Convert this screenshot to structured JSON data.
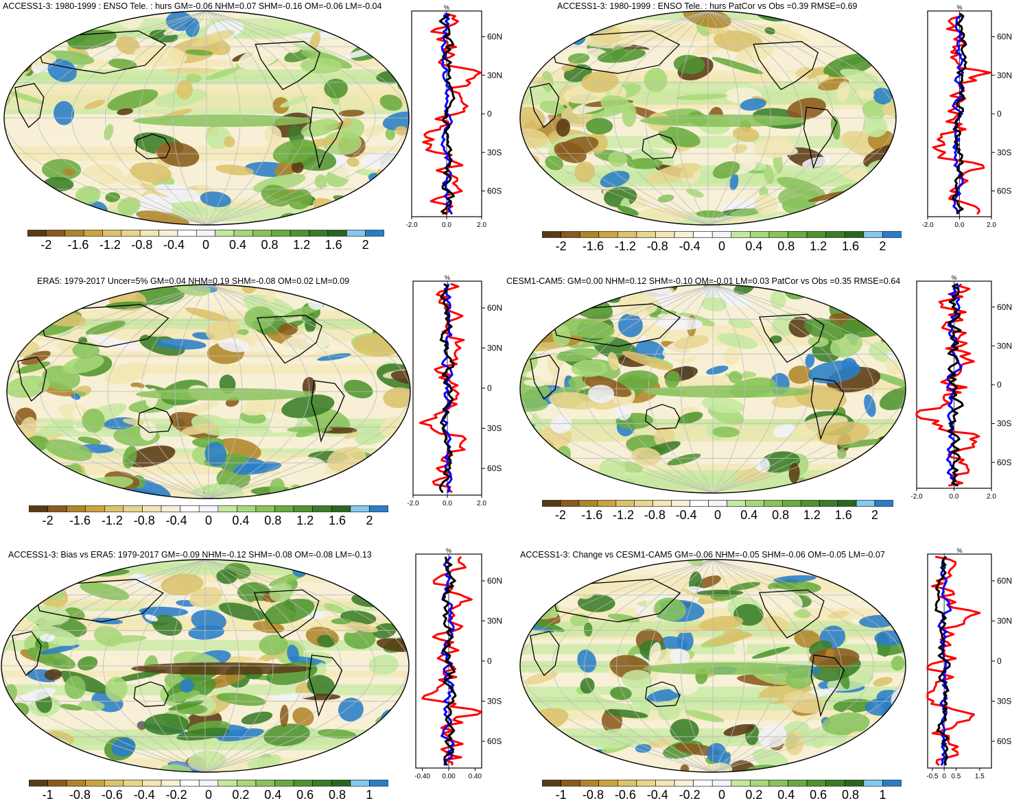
{
  "panels": [
    {
      "id": "p1",
      "title": "ACCESS1-3: 1980-1999 : ENSO Tele. : hurs GM=-0.06 NHM=0.07 SHM=-0.16 OM=-0.06 LM=-0.04",
      "colorbar_labels": [
        "-2",
        "-1.6",
        "-1.2",
        "-0.8",
        "-0.4",
        "0",
        "0.4",
        "0.8",
        "1.2",
        "1.6",
        "2"
      ],
      "profile": {
        "unit": "%",
        "x_ticks": [
          "-2.0",
          "0.0",
          "2.0"
        ],
        "y_ticks": [
          "60N",
          "30N",
          "0",
          "30S",
          "60S"
        ],
        "xlim": [
          -2,
          2
        ]
      }
    },
    {
      "id": "p2",
      "title": "ACCESS1-3: 1980-1999 : ENSO Tele. : hurs PatCor vs Obs =0.39 RMSE=0.69",
      "colorbar_labels": [
        "-2",
        "-1.6",
        "-1.2",
        "-0.8",
        "-0.4",
        "0",
        "0.4",
        "0.8",
        "1.2",
        "1.6",
        "2"
      ],
      "profile": {
        "unit": "%",
        "x_ticks": [
          "-2.0",
          "0.0",
          "2.0"
        ],
        "y_ticks": [
          "60N",
          "30N",
          "0",
          "30S",
          "60S"
        ],
        "xlim": [
          -2,
          2
        ]
      }
    },
    {
      "id": "p3",
      "title": "ERA5: 1979-2017 Uncer=5% GM=0.04 NHM=0.19 SHM=-0.08 OM=0.02 LM=0.09",
      "colorbar_labels": [
        "-2",
        "-1.6",
        "-1.2",
        "-0.8",
        "-0.4",
        "0",
        "0.4",
        "0.8",
        "1.2",
        "1.6",
        "2"
      ],
      "profile": {
        "unit": "%",
        "x_ticks": [
          "-2.0",
          "0.0",
          "2.0"
        ],
        "y_ticks": [
          "60N",
          "30N",
          "0",
          "30S",
          "60S"
        ],
        "xlim": [
          -2,
          2
        ]
      }
    },
    {
      "id": "p4",
      "title": "CESM1-CAM5: GM=0.00 NHM=0.12 SHM=-0.10 OM=-0.01 LM=0.03 PatCor vs Obs =0.35 RMSE=0.64",
      "colorbar_labels": [
        "-2",
        "-1.6",
        "-1.2",
        "-0.8",
        "-0.4",
        "0",
        "0.4",
        "0.8",
        "1.2",
        "1.6",
        "2"
      ],
      "profile": {
        "unit": "%",
        "x_ticks": [
          "-2.0",
          "0.0",
          "2.0"
        ],
        "y_ticks": [
          "60N",
          "30N",
          "0",
          "30S",
          "60S"
        ],
        "xlim": [
          -2,
          2
        ]
      }
    },
    {
      "id": "p5",
      "title": "ACCESS1-3: Bias vs ERA5: 1979-2017 GM=-0.09 NHM=-0.12 SHM=-0.08 OM=-0.08 LM=-0.13",
      "colorbar_labels": [
        "-1",
        "-0.8",
        "-0.6",
        "-0.4",
        "-0.2",
        "0",
        "0.2",
        "0.4",
        "0.6",
        "0.8",
        "1"
      ],
      "profile": {
        "unit": "%",
        "x_ticks": [
          "-0.40",
          "0.00",
          "0.40"
        ],
        "y_ticks": [
          "60N",
          "30N",
          "0",
          "30S",
          "60S"
        ],
        "xlim": [
          -0.5,
          0.5
        ]
      }
    },
    {
      "id": "p6",
      "title": "ACCESS1-3: Change vs CESM1-CAM5 GM=-0.06 NHM=-0.05 SHM=-0.06 OM=-0.05 LM=-0.07",
      "colorbar_labels": [
        "-1",
        "-0.8",
        "-0.6",
        "-0.4",
        "-0.2",
        "0",
        "0.2",
        "0.4",
        "0.6",
        "0.8",
        "1"
      ],
      "profile": {
        "unit": "%",
        "x_ticks": [
          "-0.5",
          "0",
          "0.5",
          "1.5"
        ],
        "y_ticks": [
          "60N",
          "30N",
          "0",
          "30S",
          "60S"
        ],
        "xlim": [
          -0.7,
          2
        ]
      }
    }
  ],
  "colors": {
    "palette": [
      "#5a3a16",
      "#8a5a1e",
      "#b0852a",
      "#cca43e",
      "#dcc26a",
      "#e8d58e",
      "#f2e7b4",
      "#f7f0d6",
      "#ffffff",
      "#f3f3fb",
      "#c5e8a0",
      "#a8d878",
      "#88c35a",
      "#6aab3f",
      "#4e9430",
      "#3a7c28",
      "#2a6620",
      "#86c7ee",
      "#2a7dc8"
    ],
    "land_fill": "#ffffff",
    "profile_red": "#ff0000",
    "profile_blue": "#0000ff",
    "profile_black": "#000000"
  }
}
